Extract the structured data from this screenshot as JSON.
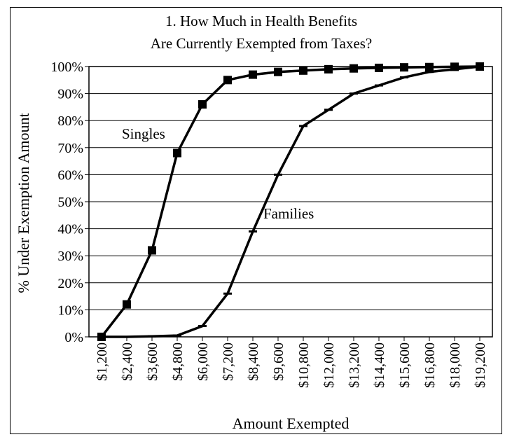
{
  "chart_data": {
    "type": "line",
    "title": "1. How Much in Health Benefits",
    "subtitle": "Are Currently Exempted from Taxes?",
    "xlabel": "Amount Exempted",
    "ylabel": "% Under Exemption Amount",
    "x": [
      "$1,200",
      "$2,400",
      "$3,600",
      "$4,800",
      "$6,000",
      "$7,200",
      "$8,400",
      "$9,600",
      "$10,800",
      "$12,000",
      "$13,200",
      "$14,400",
      "$15,600",
      "$16,800",
      "$18,000",
      "$19,200"
    ],
    "yticks": [
      "0%",
      "10%",
      "20%",
      "30%",
      "40%",
      "50%",
      "60%",
      "70%",
      "80%",
      "90%",
      "100%"
    ],
    "ylim": [
      0,
      100
    ],
    "grid": true,
    "series": [
      {
        "name": "Singles",
        "marker": "square",
        "values": [
          0,
          12,
          32,
          68,
          86,
          95,
          97,
          98,
          98.5,
          99,
          99.3,
          99.5,
          99.7,
          99.8,
          99.9,
          100
        ]
      },
      {
        "name": "Families",
        "marker": "dash",
        "values": [
          0,
          0,
          0.2,
          0.5,
          4,
          16,
          39,
          60,
          78,
          84,
          90,
          93,
          96,
          98,
          99,
          100
        ]
      }
    ]
  }
}
